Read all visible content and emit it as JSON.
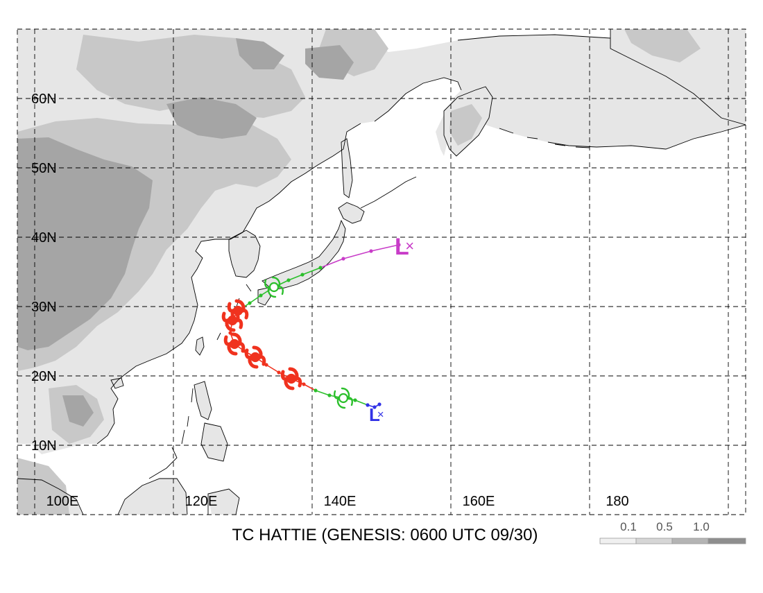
{
  "map": {
    "title": "TC HATTIE (GENESIS: 0600 UTC 09/30)",
    "lat_labels": [
      "60N",
      "50N",
      "40N",
      "30N",
      "20N",
      "10N"
    ],
    "lon_labels": [
      "100E",
      "120E",
      "140E",
      "160E",
      "180"
    ],
    "colors": {
      "land_light": "#e6e6e6",
      "land_mid": "#c8c8c8",
      "land_dark": "#a5a5a5",
      "ocean": "#ffffff",
      "track_depression": "#3232e6",
      "track_storm": "#2bbf2b",
      "track_typhoon": "#f0321e",
      "track_extratropical": "#c83cc8"
    }
  },
  "legend": {
    "labels": [
      "0.1",
      "0.5",
      "1.0"
    ]
  },
  "track": {
    "genesis_marker": "L",
    "extratropical_marker": "L",
    "points": [
      {
        "lon": 149.7,
        "lat": 15.9,
        "stage": "depression"
      },
      {
        "lon": 149.0,
        "lat": 15.5,
        "stage": "depression"
      },
      {
        "lon": 148.0,
        "lat": 15.8,
        "stage": "depression"
      },
      {
        "lon": 146.2,
        "lat": 16.5,
        "stage": "storm"
      },
      {
        "lon": 144.5,
        "lat": 16.8,
        "stage": "storm"
      },
      {
        "lon": 142.5,
        "lat": 17.2,
        "stage": "storm"
      },
      {
        "lon": 140.5,
        "lat": 17.9,
        "stage": "storm"
      },
      {
        "lon": 138.8,
        "lat": 18.8,
        "stage": "typhoon"
      },
      {
        "lon": 137.0,
        "lat": 19.6,
        "stage": "typhoon"
      },
      {
        "lon": 135.2,
        "lat": 20.5,
        "stage": "typhoon"
      },
      {
        "lon": 133.4,
        "lat": 21.6,
        "stage": "typhoon"
      },
      {
        "lon": 131.8,
        "lat": 22.7,
        "stage": "typhoon"
      },
      {
        "lon": 130.2,
        "lat": 23.6,
        "stage": "typhoon"
      },
      {
        "lon": 128.8,
        "lat": 24.6,
        "stage": "typhoon"
      },
      {
        "lon": 128.2,
        "lat": 26.2,
        "stage": "typhoon"
      },
      {
        "lon": 128.5,
        "lat": 28.0,
        "stage": "typhoon"
      },
      {
        "lon": 129.3,
        "lat": 29.4,
        "stage": "typhoon"
      },
      {
        "lon": 131.0,
        "lat": 30.5,
        "stage": "storm"
      },
      {
        "lon": 132.6,
        "lat": 31.6,
        "stage": "storm"
      },
      {
        "lon": 134.5,
        "lat": 32.8,
        "stage": "storm"
      },
      {
        "lon": 136.6,
        "lat": 33.8,
        "stage": "storm"
      },
      {
        "lon": 138.6,
        "lat": 34.6,
        "stage": "storm"
      },
      {
        "lon": 141.2,
        "lat": 35.6,
        "stage": "storm"
      },
      {
        "lon": 144.5,
        "lat": 36.9,
        "stage": "extratropical"
      },
      {
        "lon": 148.5,
        "lat": 38.0,
        "stage": "extratropical"
      },
      {
        "lon": 152.5,
        "lat": 38.9,
        "stage": "extratropical"
      }
    ]
  }
}
